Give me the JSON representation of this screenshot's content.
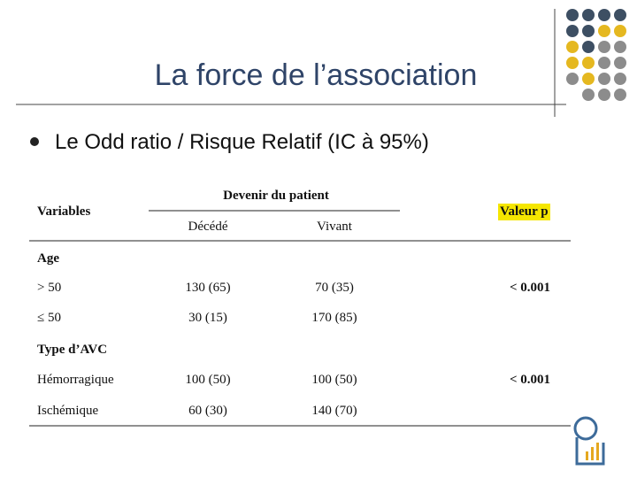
{
  "header": {
    "title": "La force de l’association"
  },
  "bullet": "Le Odd ratio / Risque Relatif (IC à 95%)",
  "table": {
    "group_header": "Devenir du patient",
    "columns": [
      "Variables",
      "Décédé",
      "Vivant",
      "Valeur p"
    ],
    "rows": [
      {
        "section": "Age"
      },
      {
        "label": "> 50",
        "cells": [
          "130 (65)",
          "70 (35)"
        ],
        "p": "< 0.001"
      },
      {
        "label": "≤ 50",
        "cells": [
          "30 (15)",
          "170 (85)"
        ]
      },
      {
        "section": "Type d’AVC"
      },
      {
        "label": "Hémorragique",
        "cells": [
          "100 (50)",
          "100 (50)"
        ],
        "p": "< 0.001"
      },
      {
        "label": "Ischémique",
        "cells": [
          "60 (30)",
          "140 (70)"
        ]
      }
    ]
  }
}
